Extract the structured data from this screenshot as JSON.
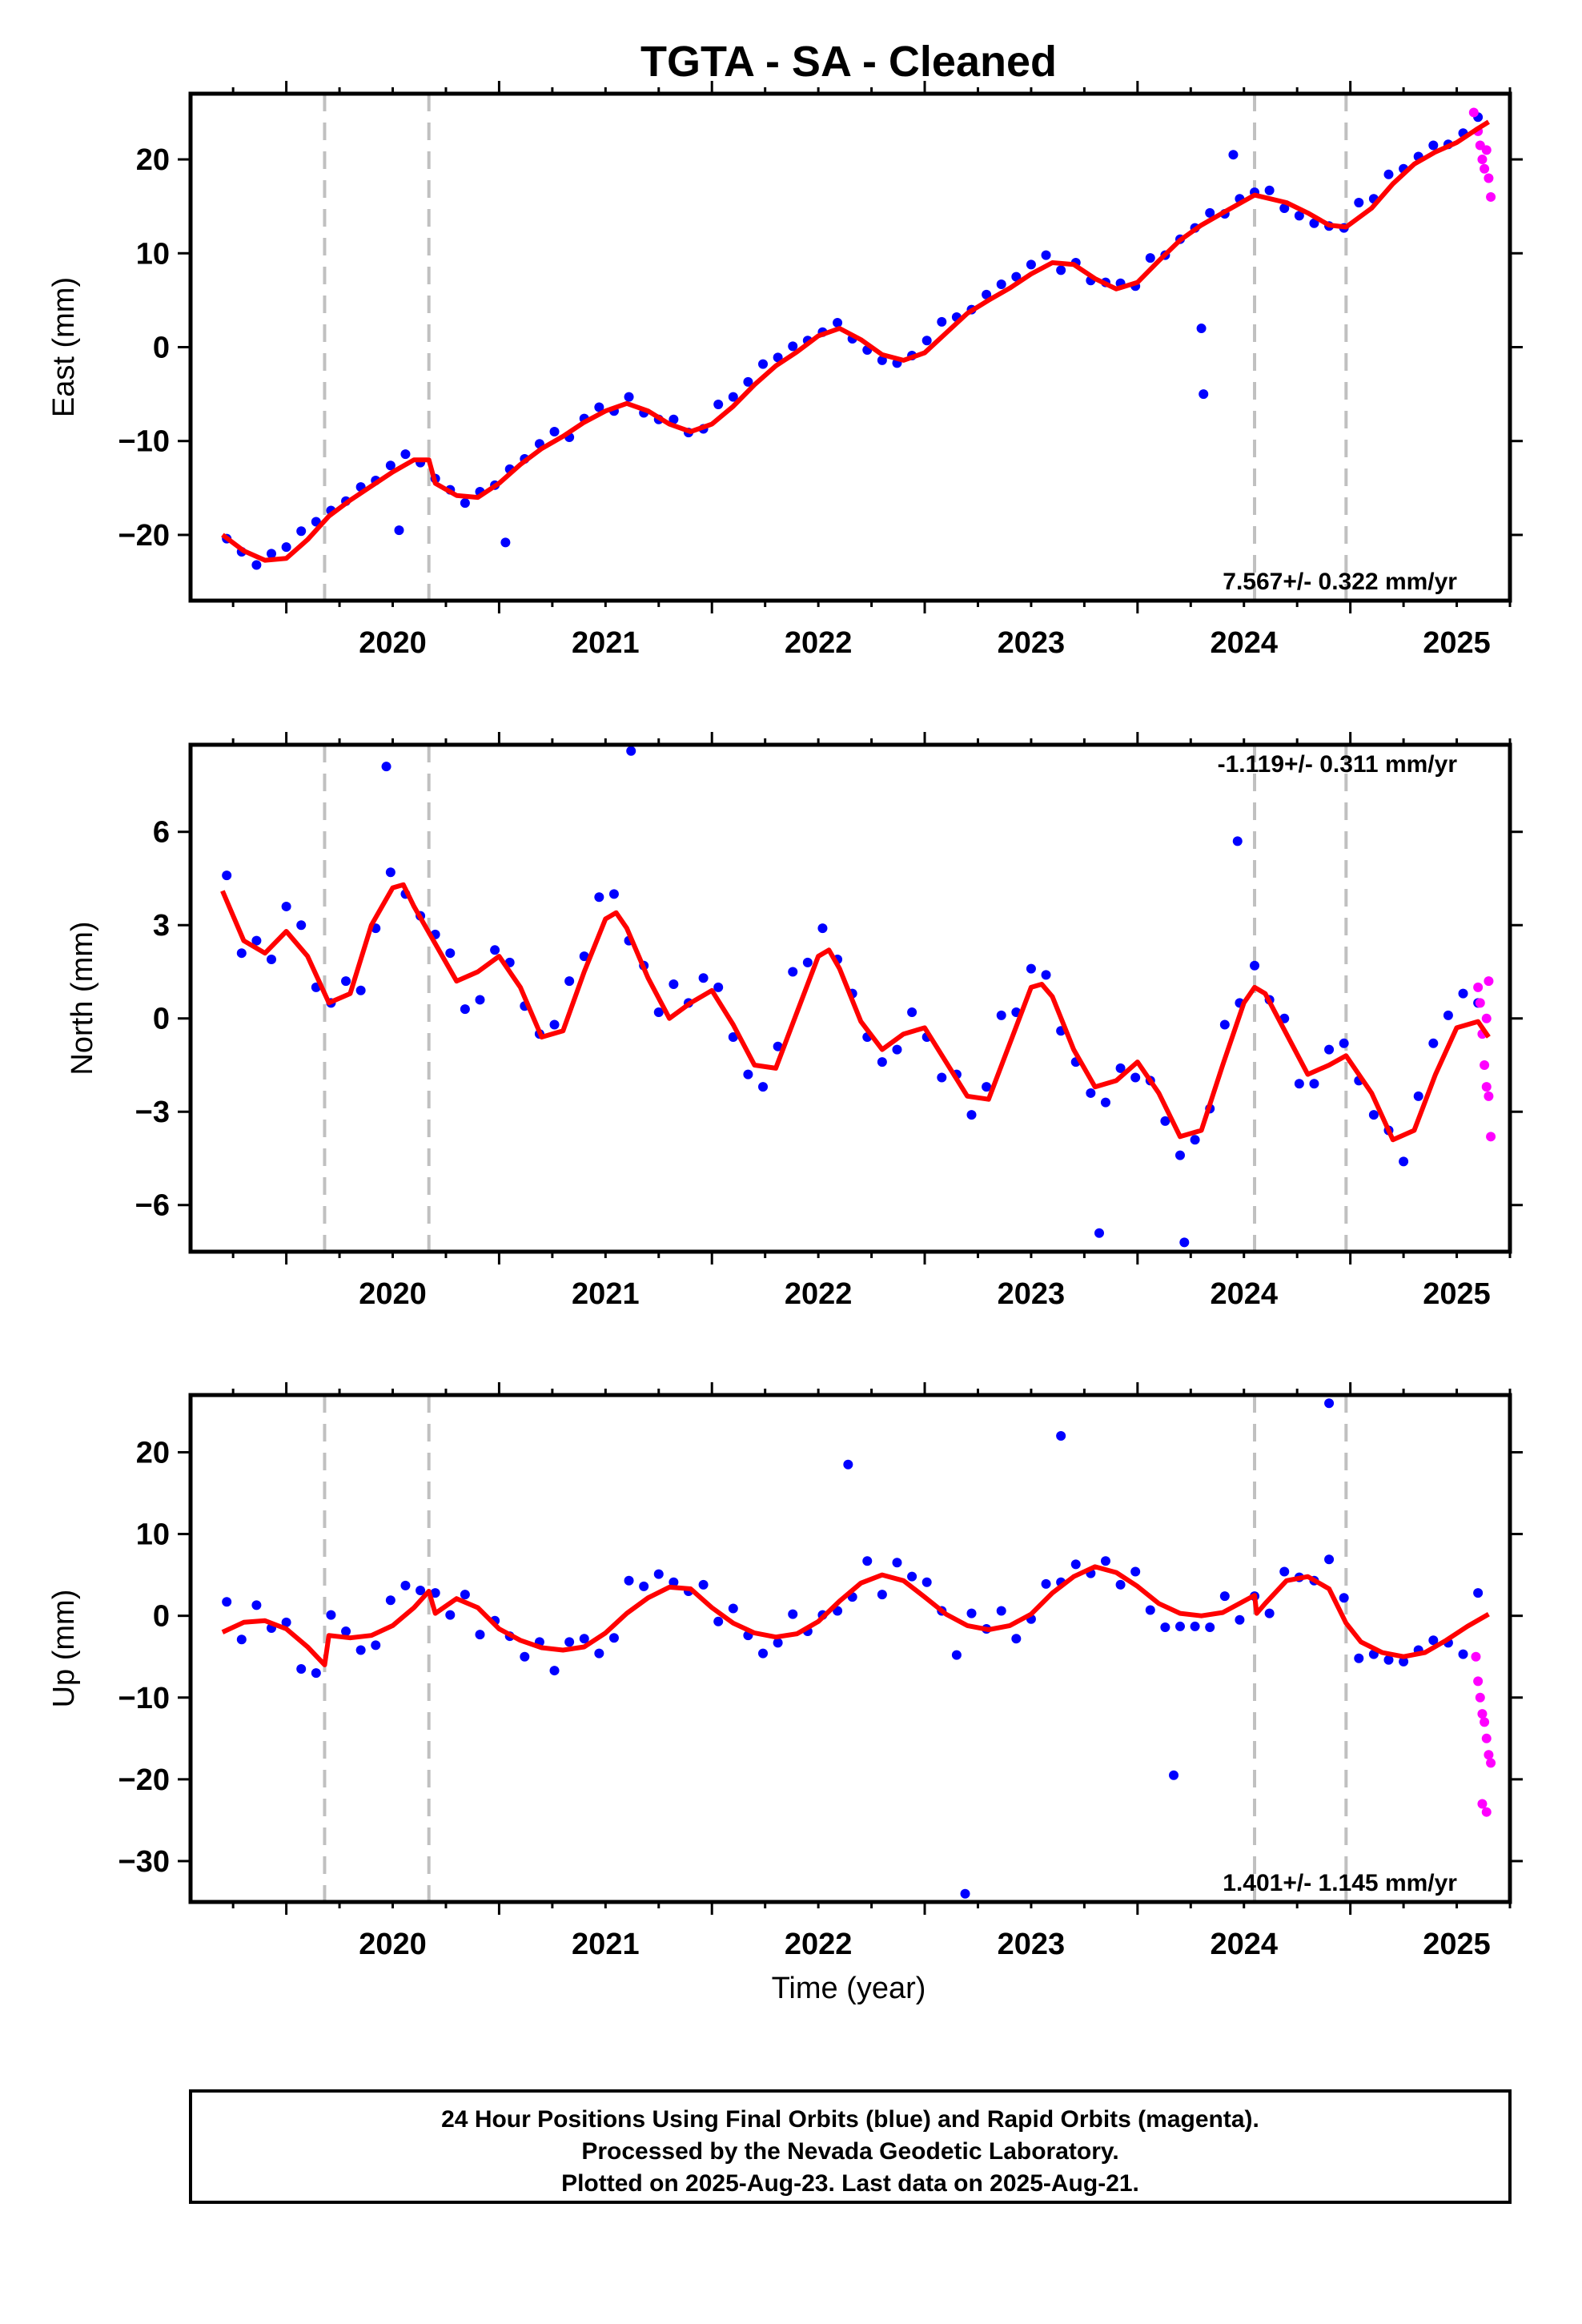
{
  "title": "TGTA  - SA - Cleaned",
  "xlabel": "Time (year)",
  "footer": {
    "line1": "24 Hour Positions Using Final Orbits (blue) and Rapid Orbits (magenta).",
    "line2": "Processed by the Nevada Geodetic Laboratory.",
    "line3": "Plotted on 2025-Aug-23. Last data on 2025-Aug-21."
  },
  "colors": {
    "final": "#0000ff",
    "rapid": "#ff00ff",
    "model": "#ff0000",
    "steps": "#c0c0c0"
  },
  "chart_data": [
    {
      "type": "scatter",
      "ylabel": "East (mm)",
      "rate_label": "7.567+/- 0.322 mm/yr",
      "xlim": [
        2019.55,
        2025.75
      ],
      "ylim": [
        -27,
        27
      ],
      "x_ticks": [
        2020,
        2021,
        2022,
        2023,
        2024,
        2025
      ],
      "y_ticks": [
        -20,
        -10,
        0,
        10,
        20
      ],
      "steps": [
        2020.18,
        2020.67,
        2024.55,
        2024.98
      ],
      "model": {
        "x": [
          2019.7,
          2019.8,
          2019.9,
          2020.0,
          2020.1,
          2020.2,
          2020.3,
          2020.4,
          2020.5,
          2020.6,
          2020.67,
          2020.7,
          2020.8,
          2020.9,
          2021.0,
          2021.1,
          2021.2,
          2021.3,
          2021.4,
          2021.5,
          2021.6,
          2021.7,
          2021.8,
          2021.9,
          2022.0,
          2022.1,
          2022.2,
          2022.3,
          2022.4,
          2022.5,
          2022.6,
          2022.7,
          2022.8,
          2022.9,
          2023.0,
          2023.1,
          2023.2,
          2023.3,
          2023.4,
          2023.5,
          2023.6,
          2023.7,
          2023.8,
          2023.9,
          2024.0,
          2024.1,
          2024.2,
          2024.3,
          2024.4,
          2024.55,
          2024.7,
          2024.8,
          2024.9,
          2024.98,
          2025.1,
          2025.2,
          2025.3,
          2025.4,
          2025.5,
          2025.6,
          2025.65
        ],
        "y": [
          -20.0,
          -21.7,
          -22.7,
          -22.5,
          -20.5,
          -18.0,
          -16.3,
          -14.8,
          -13.3,
          -12.0,
          -12.0,
          -14.5,
          -15.8,
          -16.0,
          -14.5,
          -12.5,
          -10.8,
          -9.5,
          -8.0,
          -6.8,
          -6.0,
          -6.8,
          -8.2,
          -9.0,
          -8.2,
          -6.3,
          -4.0,
          -2.0,
          -0.5,
          1.2,
          2.0,
          0.8,
          -0.8,
          -1.4,
          -0.6,
          1.5,
          3.6,
          5.0,
          6.3,
          7.8,
          9.0,
          8.8,
          7.3,
          6.2,
          6.9,
          9.2,
          11.4,
          13.0,
          14.3,
          16.2,
          15.4,
          14.3,
          13.0,
          12.8,
          14.8,
          17.4,
          19.5,
          20.8,
          21.8,
          23.3,
          24.0
        ]
      },
      "final": {
        "x": [
          2019.72,
          2019.79,
          2019.86,
          2019.93,
          2020.0,
          2020.07,
          2020.14,
          2020.21,
          2020.28,
          2020.35,
          2020.42,
          2020.49,
          2020.56,
          2020.63,
          2020.7,
          2020.77,
          2020.84,
          2020.91,
          2020.98,
          2021.05,
          2021.12,
          2021.19,
          2021.26,
          2021.33,
          2021.4,
          2021.47,
          2021.54,
          2021.61,
          2021.68,
          2021.75,
          2021.82,
          2021.89,
          2021.96,
          2022.03,
          2022.1,
          2022.17,
          2022.24,
          2022.31,
          2022.38,
          2022.45,
          2022.52,
          2022.59,
          2022.66,
          2022.73,
          2022.8,
          2022.87,
          2022.94,
          2023.01,
          2023.08,
          2023.15,
          2023.22,
          2023.29,
          2023.36,
          2023.43,
          2023.5,
          2023.57,
          2023.64,
          2023.71,
          2023.78,
          2023.85,
          2023.92,
          2023.99,
          2024.06,
          2024.13,
          2024.2,
          2024.27,
          2024.34,
          2024.41,
          2024.48,
          2024.55,
          2024.62,
          2024.69,
          2024.76,
          2024.83,
          2024.9,
          2024.97,
          2025.04,
          2025.11,
          2025.18,
          2025.25,
          2025.32,
          2025.39,
          2025.46,
          2025.53,
          2025.6,
          2020.53,
          2021.03,
          2024.3,
          2024.31,
          2024.45
        ],
        "y": [
          -20.4,
          -21.8,
          -23.2,
          -22.0,
          -21.3,
          -19.6,
          -18.6,
          -17.4,
          -16.4,
          -14.9,
          -14.2,
          -12.6,
          -11.4,
          -12.3,
          -14.0,
          -15.2,
          -16.6,
          -15.4,
          -14.7,
          -13.0,
          -11.9,
          -10.3,
          -9.0,
          -9.6,
          -7.6,
          -6.4,
          -6.8,
          -5.3,
          -7.0,
          -7.7,
          -7.7,
          -9.1,
          -8.7,
          -6.1,
          -5.3,
          -3.7,
          -1.8,
          -1.1,
          0.1,
          0.7,
          1.6,
          2.6,
          0.9,
          -0.3,
          -1.4,
          -1.7,
          -0.9,
          0.7,
          2.7,
          3.2,
          4.0,
          5.6,
          6.7,
          7.5,
          8.8,
          9.8,
          8.2,
          9.0,
          7.1,
          6.9,
          6.8,
          6.5,
          9.5,
          9.8,
          11.5,
          12.7,
          14.3,
          14.2,
          15.8,
          16.5,
          16.7,
          14.8,
          14.0,
          13.2,
          12.9,
          12.7,
          15.4,
          15.8,
          18.4,
          19.0,
          20.3,
          21.5,
          21.6,
          22.8,
          24.5,
          -19.5,
          -20.8,
          2.0,
          -5.0,
          20.5
        ]
      },
      "rapid": {
        "x": [
          2025.58,
          2025.6,
          2025.61,
          2025.62,
          2025.63,
          2025.64,
          2025.65,
          2025.66
        ],
        "y": [
          25.0,
          23.0,
          21.5,
          20.0,
          19.0,
          21.0,
          18.0,
          16.0
        ]
      }
    },
    {
      "type": "scatter",
      "ylabel": "North (mm)",
      "rate_label": "-1.119+/- 0.311 mm/yr",
      "xlim": [
        2019.55,
        2025.75
      ],
      "ylim": [
        -7.5,
        8.8
      ],
      "x_ticks": [
        2020,
        2021,
        2022,
        2023,
        2024,
        2025
      ],
      "y_ticks": [
        -6,
        -3,
        0,
        3,
        6
      ],
      "steps": [
        2020.18,
        2020.67,
        2024.55,
        2024.98
      ],
      "model": {
        "x": [
          2019.7,
          2019.8,
          2019.9,
          2020.0,
          2020.1,
          2020.2,
          2020.3,
          2020.4,
          2020.5,
          2020.55,
          2020.6,
          2020.7,
          2020.8,
          2020.9,
          2021.0,
          2021.1,
          2021.2,
          2021.3,
          2021.4,
          2021.5,
          2021.55,
          2021.6,
          2021.7,
          2021.8,
          2021.9,
          2022.0,
          2022.1,
          2022.2,
          2022.3,
          2022.4,
          2022.5,
          2022.55,
          2022.6,
          2022.7,
          2022.8,
          2022.9,
          2023.0,
          2023.1,
          2023.2,
          2023.3,
          2023.4,
          2023.5,
          2023.55,
          2023.6,
          2023.7,
          2023.8,
          2023.9,
          2024.0,
          2024.1,
          2024.2,
          2024.3,
          2024.4,
          2024.5,
          2024.55,
          2024.6,
          2024.7,
          2024.8,
          2024.9,
          2024.98,
          2025.1,
          2025.2,
          2025.3,
          2025.4,
          2025.5,
          2025.6,
          2025.65
        ],
        "y": [
          4.1,
          2.5,
          2.1,
          2.8,
          2.0,
          0.5,
          0.8,
          3.0,
          4.2,
          4.3,
          3.6,
          2.4,
          1.2,
          1.5,
          2.0,
          1.0,
          -0.6,
          -0.4,
          1.5,
          3.2,
          3.4,
          2.9,
          1.3,
          0.0,
          0.5,
          0.9,
          -0.2,
          -1.5,
          -1.6,
          0.2,
          2.0,
          2.2,
          1.6,
          -0.1,
          -1.0,
          -0.5,
          -0.3,
          -1.4,
          -2.5,
          -2.6,
          -0.8,
          1.0,
          1.1,
          0.7,
          -1.0,
          -2.2,
          -2.0,
          -1.4,
          -2.4,
          -3.8,
          -3.6,
          -1.5,
          0.5,
          1.0,
          0.8,
          -0.5,
          -1.8,
          -1.5,
          -1.2,
          -2.4,
          -3.9,
          -3.6,
          -1.8,
          -0.3,
          -0.1,
          -0.6
        ]
      },
      "final": {
        "x": [
          2019.72,
          2019.79,
          2019.86,
          2019.93,
          2020.0,
          2020.07,
          2020.14,
          2020.21,
          2020.28,
          2020.35,
          2020.42,
          2020.49,
          2020.56,
          2020.63,
          2020.7,
          2020.77,
          2020.84,
          2020.91,
          2020.98,
          2021.05,
          2021.12,
          2021.19,
          2021.26,
          2021.33,
          2021.4,
          2021.47,
          2021.54,
          2021.61,
          2021.68,
          2021.75,
          2021.82,
          2021.89,
          2021.96,
          2022.03,
          2022.1,
          2022.17,
          2022.24,
          2022.31,
          2022.38,
          2022.45,
          2022.52,
          2022.59,
          2022.66,
          2022.73,
          2022.8,
          2022.87,
          2022.94,
          2023.01,
          2023.08,
          2023.15,
          2023.22,
          2023.29,
          2023.36,
          2023.43,
          2023.5,
          2023.57,
          2023.64,
          2023.71,
          2023.78,
          2023.85,
          2023.92,
          2023.99,
          2024.06,
          2024.13,
          2024.2,
          2024.27,
          2024.34,
          2024.41,
          2024.48,
          2024.55,
          2024.62,
          2024.69,
          2024.76,
          2024.83,
          2024.9,
          2024.97,
          2025.04,
          2025.11,
          2025.18,
          2025.25,
          2025.32,
          2025.39,
          2025.46,
          2025.53,
          2025.6,
          2020.47,
          2021.62,
          2024.47,
          2023.82,
          2024.22
        ],
        "y": [
          4.6,
          2.1,
          2.5,
          1.9,
          3.6,
          3.0,
          1.0,
          0.5,
          1.2,
          0.9,
          2.9,
          4.7,
          4.0,
          3.3,
          2.7,
          2.1,
          0.3,
          0.6,
          2.2,
          1.8,
          0.4,
          -0.5,
          -0.2,
          1.2,
          2.0,
          3.9,
          4.0,
          2.5,
          1.7,
          0.2,
          1.1,
          0.5,
          1.3,
          1.0,
          -0.6,
          -1.8,
          -2.2,
          -0.9,
          1.5,
          1.8,
          2.9,
          1.9,
          0.8,
          -0.6,
          -1.4,
          -1.0,
          0.2,
          -0.6,
          -1.9,
          -1.8,
          -3.1,
          -2.2,
          0.1,
          0.2,
          1.6,
          1.4,
          -0.4,
          -1.4,
          -2.4,
          -2.7,
          -1.6,
          -1.9,
          -2.0,
          -3.3,
          -4.4,
          -3.9,
          -2.9,
          -0.2,
          0.5,
          1.7,
          0.6,
          0.0,
          -2.1,
          -2.1,
          -1.0,
          -0.8,
          -2.0,
          -3.1,
          -3.6,
          -4.6,
          -2.5,
          -0.8,
          0.1,
          0.8,
          0.5,
          8.1,
          8.6,
          5.7,
          -6.9,
          -7.2
        ]
      },
      "rapid": {
        "x": [
          2025.6,
          2025.61,
          2025.62,
          2025.63,
          2025.64,
          2025.65,
          2025.66,
          2025.64,
          2025.65
        ],
        "y": [
          1.0,
          0.5,
          -0.5,
          -1.5,
          -2.2,
          -2.5,
          -3.8,
          0.0,
          1.2
        ]
      }
    },
    {
      "type": "scatter",
      "ylabel": "Up (mm)",
      "rate_label": "1.401+/- 1.145 mm/yr",
      "xlim": [
        2019.55,
        2025.75
      ],
      "ylim": [
        -35,
        27
      ],
      "x_ticks": [
        2020,
        2021,
        2022,
        2023,
        2024,
        2025
      ],
      "y_ticks": [
        -30,
        -20,
        -10,
        0,
        10,
        20
      ],
      "steps": [
        2020.18,
        2020.67,
        2024.55,
        2024.98
      ],
      "model": {
        "x": [
          2019.7,
          2019.8,
          2019.9,
          2020.0,
          2020.1,
          2020.18,
          2020.2,
          2020.3,
          2020.4,
          2020.5,
          2020.6,
          2020.67,
          2020.7,
          2020.8,
          2020.9,
          2021.0,
          2021.1,
          2021.2,
          2021.3,
          2021.4,
          2021.5,
          2021.6,
          2021.7,
          2021.8,
          2021.9,
          2022.0,
          2022.1,
          2022.2,
          2022.3,
          2022.4,
          2022.5,
          2022.6,
          2022.7,
          2022.8,
          2022.9,
          2023.0,
          2023.1,
          2023.2,
          2023.3,
          2023.4,
          2023.5,
          2023.6,
          2023.7,
          2023.8,
          2023.9,
          2024.0,
          2024.1,
          2024.2,
          2024.3,
          2024.4,
          2024.55,
          2024.56,
          2024.6,
          2024.7,
          2024.8,
          2024.9,
          2024.98,
          2025.05,
          2025.15,
          2025.25,
          2025.35,
          2025.45,
          2025.55,
          2025.65
        ],
        "y": [
          -2.0,
          -0.8,
          -0.6,
          -1.6,
          -3.8,
          -6.0,
          -2.4,
          -2.7,
          -2.4,
          -1.2,
          1.0,
          3.0,
          0.3,
          2.1,
          1.0,
          -1.6,
          -3.0,
          -3.9,
          -4.2,
          -3.8,
          -2.1,
          0.3,
          2.2,
          3.5,
          3.3,
          1.0,
          -0.9,
          -2.1,
          -2.6,
          -2.2,
          -0.7,
          1.8,
          4.0,
          5.0,
          4.3,
          2.3,
          0.2,
          -1.2,
          -1.7,
          -1.2,
          0.2,
          2.8,
          4.8,
          6.0,
          5.3,
          3.6,
          1.5,
          0.3,
          0.0,
          0.4,
          2.5,
          0.3,
          1.5,
          4.3,
          4.8,
          3.3,
          -0.9,
          -3.2,
          -4.5,
          -5.0,
          -4.5,
          -3.0,
          -1.3,
          0.2
        ]
      },
      "final": {
        "x": [
          2019.72,
          2019.79,
          2019.86,
          2019.93,
          2020.0,
          2020.07,
          2020.14,
          2020.21,
          2020.28,
          2020.35,
          2020.42,
          2020.49,
          2020.56,
          2020.63,
          2020.7,
          2020.77,
          2020.84,
          2020.91,
          2020.98,
          2021.05,
          2021.12,
          2021.19,
          2021.26,
          2021.33,
          2021.4,
          2021.47,
          2021.54,
          2021.61,
          2021.68,
          2021.75,
          2021.82,
          2021.89,
          2021.96,
          2022.03,
          2022.1,
          2022.17,
          2022.24,
          2022.31,
          2022.38,
          2022.45,
          2022.52,
          2022.59,
          2022.66,
          2022.73,
          2022.8,
          2022.87,
          2022.94,
          2023.01,
          2023.08,
          2023.15,
          2023.22,
          2023.29,
          2023.36,
          2023.43,
          2023.5,
          2023.57,
          2023.64,
          2023.71,
          2023.78,
          2023.85,
          2023.92,
          2023.99,
          2024.06,
          2024.13,
          2024.2,
          2024.27,
          2024.34,
          2024.41,
          2024.48,
          2024.55,
          2024.62,
          2024.69,
          2024.76,
          2024.83,
          2024.9,
          2024.97,
          2025.04,
          2025.11,
          2025.18,
          2025.25,
          2025.32,
          2025.39,
          2025.46,
          2025.53,
          2025.6,
          2024.9,
          2023.19,
          2023.64,
          2024.17,
          2022.64
        ],
        "y": [
          1.7,
          -2.9,
          1.3,
          -1.5,
          -0.8,
          -6.5,
          -7.0,
          0.1,
          -1.9,
          -4.2,
          -3.6,
          1.9,
          3.7,
          3.1,
          2.8,
          0.1,
          2.6,
          -2.3,
          -0.6,
          -2.5,
          -5.0,
          -3.2,
          -6.7,
          -3.2,
          -2.8,
          -4.6,
          -2.7,
          4.3,
          3.6,
          5.1,
          4.1,
          3.0,
          3.8,
          -0.7,
          0.9,
          -2.4,
          -4.6,
          -3.3,
          0.2,
          -1.9,
          0.1,
          0.6,
          2.3,
          6.7,
          2.6,
          6.5,
          4.8,
          4.1,
          0.6,
          -4.8,
          0.3,
          -1.6,
          0.6,
          -2.8,
          -0.4,
          3.9,
          4.1,
          6.3,
          5.2,
          6.7,
          3.8,
          5.4,
          0.7,
          -1.4,
          -1.3,
          -1.3,
          -1.4,
          2.4,
          -0.5,
          2.4,
          0.3,
          5.4,
          4.7,
          4.3,
          6.9,
          2.2,
          -5.2,
          -4.7,
          -5.4,
          -5.6,
          -4.2,
          -3.0,
          -3.3,
          -4.7,
          2.8,
          26.0,
          -34.0,
          22.0,
          -19.5,
          18.5
        ]
      },
      "rapid": {
        "x": [
          2025.59,
          2025.6,
          2025.61,
          2025.62,
          2025.63,
          2025.64,
          2025.65,
          2025.66,
          2025.62,
          2025.64
        ],
        "y": [
          -5.0,
          -8.0,
          -10.0,
          -12.0,
          -13.0,
          -15.0,
          -17.0,
          -18.0,
          -23.0,
          -24.0
        ]
      }
    }
  ]
}
